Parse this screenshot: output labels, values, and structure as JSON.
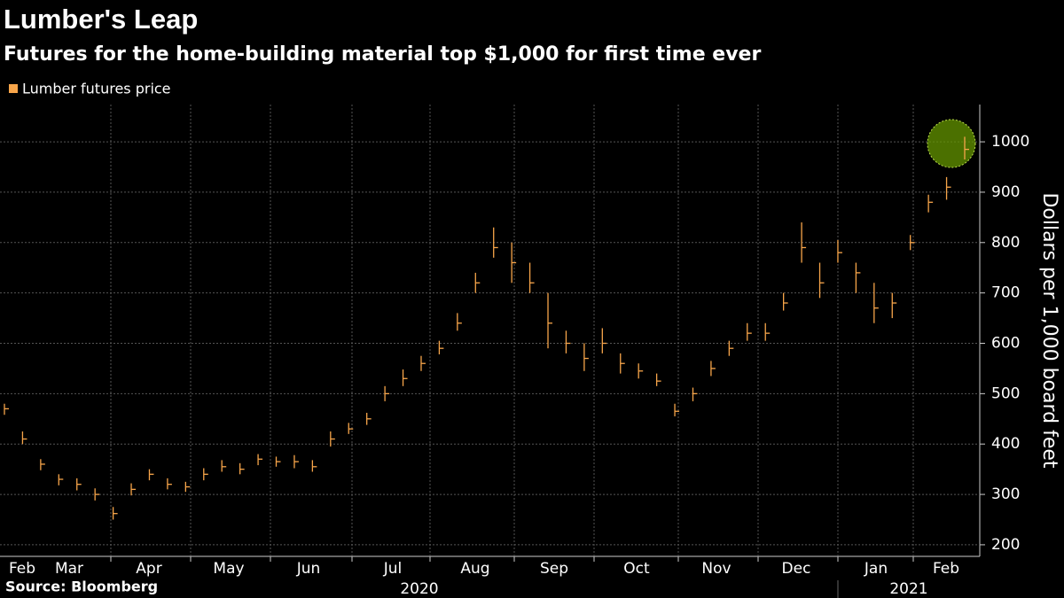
{
  "chart_data": {
    "type": "ohlc",
    "title": "Lumber's Leap",
    "subtitle": "Futures for the home-building material top $1,000 for first time ever",
    "y_label": "Dollars per 1,000 board feet",
    "source": "Source: Bloomberg",
    "months": [
      "Feb",
      "Mar",
      "Apr",
      "May",
      "Jun",
      "Jul",
      "Aug",
      "Sep",
      "Oct",
      "Nov",
      "Dec",
      "Jan",
      "Feb"
    ],
    "years": [
      "2020",
      "2021"
    ],
    "ylim": [
      177,
      1074
    ],
    "yticks": [
      200,
      300,
      400,
      500,
      600,
      700,
      800,
      900,
      1000
    ],
    "grid": true,
    "series": [
      {
        "name": "Lumber futures price",
        "color": "#f7a54a",
        "high": [
          480,
          425,
          370,
          340,
          332,
          312,
          275,
          322,
          350,
          332,
          325,
          352,
          368,
          362,
          380,
          375,
          378,
          368,
          425,
          442,
          462,
          515,
          548,
          575,
          605,
          660,
          740,
          830,
          800,
          760,
          700,
          625,
          600,
          630,
          580,
          560,
          540,
          480,
          512,
          565,
          605,
          640,
          640,
          700,
          840,
          760,
          805,
          760,
          720,
          700,
          815,
          895,
          930,
          1010
        ],
        "low": [
          458,
          400,
          348,
          318,
          308,
          288,
          250,
          298,
          328,
          310,
          305,
          328,
          345,
          340,
          358,
          355,
          352,
          345,
          395,
          420,
          438,
          485,
          515,
          545,
          578,
          625,
          700,
          770,
          720,
          700,
          590,
          580,
          545,
          580,
          540,
          530,
          515,
          455,
          485,
          535,
          575,
          605,
          605,
          665,
          760,
          690,
          760,
          700,
          640,
          650,
          785,
          860,
          885,
          965
        ],
        "close": [
          470,
          410,
          360,
          330,
          320,
          300,
          262,
          310,
          340,
          320,
          315,
          340,
          355,
          350,
          370,
          365,
          365,
          355,
          410,
          430,
          450,
          500,
          530,
          560,
          590,
          640,
          720,
          790,
          760,
          720,
          640,
          600,
          570,
          600,
          560,
          545,
          525,
          465,
          500,
          550,
          590,
          620,
          620,
          680,
          790,
          720,
          780,
          740,
          670,
          680,
          800,
          880,
          910,
          985
        ]
      }
    ]
  }
}
